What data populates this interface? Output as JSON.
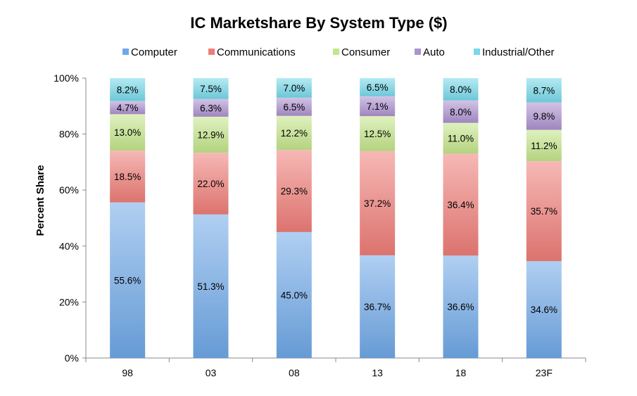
{
  "chart_data": {
    "type": "bar",
    "stacked": true,
    "title": "IC Marketshare By System Type ($)",
    "ylabel": "Percent Share",
    "xlabel": "",
    "ylim": [
      0,
      100
    ],
    "y_ticks": [
      "0%",
      "20%",
      "40%",
      "60%",
      "80%",
      "100%"
    ],
    "categories": [
      "98",
      "03",
      "08",
      "13",
      "18",
      "23F"
    ],
    "legend_position": "top",
    "series": [
      {
        "name": "Computer",
        "color": "#6fa8e8",
        "values": [
          55.6,
          51.3,
          45.0,
          36.7,
          36.6,
          34.6
        ],
        "labels": [
          "55.6%",
          "51.3%",
          "45.0%",
          "36.7%",
          "36.6%",
          "34.6%"
        ]
      },
      {
        "name": "Communications",
        "color": "#ef7d78",
        "values": [
          18.5,
          22.0,
          29.3,
          37.2,
          36.4,
          35.7
        ],
        "labels": [
          "18.5%",
          "22.0%",
          "29.3%",
          "37.2%",
          "36.4%",
          "35.7%"
        ]
      },
      {
        "name": "Consumer",
        "color": "#c4e58a",
        "values": [
          13.0,
          12.9,
          12.2,
          12.5,
          11.0,
          11.2
        ],
        "labels": [
          "13.0%",
          "12.9%",
          "12.2%",
          "12.5%",
          "11.0%",
          "11.2%"
        ]
      },
      {
        "name": "Auto",
        "color": "#ad92cf",
        "values": [
          4.7,
          6.3,
          6.5,
          7.1,
          8.0,
          9.8
        ],
        "labels": [
          "4.7%",
          "6.3%",
          "6.5%",
          "7.1%",
          "8.0%",
          "9.8%"
        ]
      },
      {
        "name": "Industrial/Other",
        "color": "#77d8ea",
        "values": [
          8.2,
          7.5,
          7.0,
          6.5,
          8.0,
          8.7
        ],
        "labels": [
          "8.2%",
          "7.5%",
          "7.0%",
          "6.5%",
          "8.0%",
          "8.7%"
        ]
      }
    ]
  }
}
